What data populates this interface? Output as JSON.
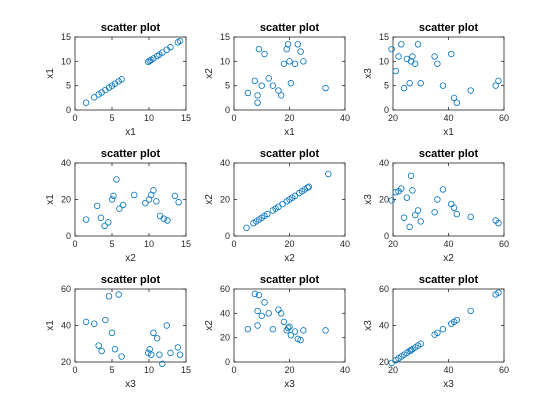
{
  "figure": {
    "background": "#ffffff",
    "marker_color": "#0072BD",
    "axis_color": "#262626"
  },
  "chart_data": [
    {
      "type": "scatter",
      "title": "scatter plot",
      "xlabel": "x1",
      "ylabel": "x1",
      "xlim": [
        0,
        15
      ],
      "ylim": [
        0,
        15
      ],
      "xticks": [
        0,
        5,
        10,
        15
      ],
      "yticks": [
        0,
        5,
        10,
        15
      ],
      "x": [
        1.5,
        2.6,
        3.2,
        3.6,
        4.1,
        4.6,
        5.0,
        5.4,
        5.9,
        6.3,
        9.9,
        10.1,
        10.3,
        10.6,
        11.1,
        11.4,
        11.8,
        12.4,
        12.9,
        13.9,
        14.2
      ],
      "y": [
        1.5,
        2.6,
        3.2,
        3.6,
        4.1,
        4.6,
        5.0,
        5.4,
        5.9,
        6.3,
        9.9,
        10.1,
        10.3,
        10.6,
        11.1,
        11.4,
        11.8,
        12.4,
        12.9,
        13.9,
        14.2
      ]
    },
    {
      "type": "scatter",
      "title": "scatter plot",
      "xlabel": "x1",
      "ylabel": "x2",
      "xlim": [
        0,
        40
      ],
      "ylim": [
        0,
        15
      ],
      "xticks": [
        0,
        20,
        40
      ],
      "yticks": [
        0,
        5,
        10,
        15
      ],
      "x": [
        5,
        7.5,
        8.5,
        8.5,
        9,
        10,
        11,
        12.5,
        14,
        16,
        17,
        18,
        19,
        19.5,
        20,
        20.5,
        22,
        23,
        24,
        25,
        33
      ],
      "y": [
        3.5,
        6,
        1.5,
        3,
        12.5,
        5,
        11.5,
        6.5,
        5,
        4,
        3,
        9.5,
        12.5,
        13.5,
        10,
        5.5,
        9.5,
        13.5,
        12,
        10,
        4.5
      ]
    },
    {
      "type": "scatter",
      "title": "scatter plot",
      "xlabel": "x1",
      "ylabel": "x3",
      "xlim": [
        20,
        60
      ],
      "ylim": [
        0,
        15
      ],
      "xticks": [
        20,
        40,
        60
      ],
      "yticks": [
        0,
        5,
        10,
        15
      ],
      "x": [
        19.5,
        21,
        22,
        23,
        24,
        25,
        26,
        26.5,
        27,
        28,
        29,
        30,
        35,
        36,
        38,
        41,
        42,
        43,
        48,
        57,
        58
      ],
      "y": [
        12.5,
        8,
        11,
        13.5,
        4.5,
        10.5,
        5.5,
        10,
        11,
        9.5,
        13.5,
        5.5,
        11,
        9.5,
        5,
        11.5,
        2.5,
        1.5,
        4,
        5,
        6
      ]
    },
    {
      "type": "scatter",
      "title": "scatter plot",
      "xlabel": "x2",
      "ylabel": "x1",
      "xlim": [
        0,
        15
      ],
      "ylim": [
        0,
        40
      ],
      "xticks": [
        0,
        5,
        10,
        15
      ],
      "yticks": [
        0,
        20,
        40
      ],
      "x": [
        1.5,
        3,
        3.5,
        4,
        4.5,
        5,
        5.2,
        5.6,
        6,
        6.5,
        8,
        9.5,
        10,
        10.3,
        10.6,
        11,
        11.5,
        12,
        12.5,
        13.5,
        14
      ],
      "y": [
        9,
        16.5,
        10,
        5.5,
        7.5,
        20,
        22,
        31,
        15,
        17,
        22.5,
        18,
        20,
        22.5,
        25,
        19,
        11,
        9.5,
        8.5,
        22,
        18.5
      ]
    },
    {
      "type": "scatter",
      "title": "scatter plot",
      "xlabel": "x2",
      "ylabel": "x2",
      "xlim": [
        0,
        40
      ],
      "ylim": [
        0,
        40
      ],
      "xticks": [
        0,
        20,
        40
      ],
      "yticks": [
        0,
        20,
        40
      ],
      "x": [
        4.5,
        7,
        8,
        9,
        10,
        11,
        12,
        14,
        15,
        16,
        17.5,
        19,
        20,
        21,
        22,
        23.5,
        24.5,
        25.5,
        26.5,
        27,
        34
      ],
      "y": [
        4.5,
        7,
        8,
        9,
        10,
        11,
        12,
        14,
        15,
        16,
        17.5,
        19,
        20,
        21,
        22,
        23.5,
        24.5,
        25.5,
        26.5,
        27,
        34
      ]
    },
    {
      "type": "scatter",
      "title": "scatter plot",
      "xlabel": "x2",
      "ylabel": "x3",
      "xlim": [
        20,
        60
      ],
      "ylim": [
        0,
        40
      ],
      "xticks": [
        20,
        40,
        60
      ],
      "yticks": [
        0,
        20,
        40
      ],
      "x": [
        19.5,
        21,
        22,
        23,
        24,
        25,
        26,
        26.5,
        27,
        28,
        29,
        30,
        35,
        36,
        38,
        41,
        42,
        43,
        48,
        57,
        58
      ],
      "y": [
        19.5,
        24,
        24.5,
        26,
        10,
        21,
        5,
        33,
        25,
        11.5,
        14,
        8,
        13,
        20,
        25.5,
        17.5,
        15.5,
        12,
        10.5,
        8.5,
        7
      ]
    },
    {
      "type": "scatter",
      "title": "scatter plot",
      "xlabel": "x3",
      "ylabel": "x1",
      "xlim": [
        0,
        15
      ],
      "ylim": [
        20,
        60
      ],
      "xticks": [
        0,
        5,
        10,
        15
      ],
      "yticks": [
        20,
        40,
        60
      ],
      "x": [
        1.5,
        2.6,
        3.2,
        3.6,
        4.1,
        4.6,
        5.0,
        5.4,
        5.9,
        6.3,
        9.9,
        10.1,
        10.3,
        10.6,
        11.1,
        11.4,
        11.8,
        12.4,
        12.9,
        13.9,
        14.2
      ],
      "y": [
        42,
        41,
        29,
        26,
        43,
        56,
        36,
        27,
        57,
        23,
        25,
        27,
        24,
        36,
        33,
        24,
        19,
        40,
        25,
        28,
        24
      ]
    },
    {
      "type": "scatter",
      "title": "scatter plot",
      "xlabel": "x3",
      "ylabel": "x2",
      "xlim": [
        0,
        40
      ],
      "ylim": [
        0,
        60
      ],
      "xticks": [
        0,
        20,
        40
      ],
      "yticks": [
        0,
        20,
        40,
        60
      ],
      "x": [
        5,
        7.5,
        8.5,
        8.5,
        9,
        10,
        11,
        12.5,
        14,
        16,
        17,
        18,
        19,
        19.5,
        20,
        20.5,
        22,
        23,
        24,
        25,
        33
      ],
      "y": [
        27,
        56,
        30,
        42,
        55,
        38,
        49,
        40,
        27,
        43,
        40,
        33,
        26,
        28,
        29,
        22,
        25,
        19,
        18,
        26,
        26
      ]
    },
    {
      "type": "scatter",
      "title": "scatter plot",
      "xlabel": "x3",
      "ylabel": "x3",
      "xlim": [
        20,
        60
      ],
      "ylim": [
        20,
        60
      ],
      "xticks": [
        20,
        40,
        60
      ],
      "yticks": [
        20,
        40,
        60
      ],
      "x": [
        19.5,
        21,
        22,
        23,
        24,
        25,
        26,
        26.5,
        27,
        28,
        29,
        30,
        35,
        36,
        38,
        41,
        42,
        43,
        48,
        57,
        58
      ],
      "y": [
        19.5,
        21,
        22,
        23,
        24,
        25,
        26,
        26.5,
        27,
        28,
        29,
        30,
        35,
        36,
        38,
        41,
        42,
        43,
        48,
        57,
        58
      ]
    }
  ]
}
